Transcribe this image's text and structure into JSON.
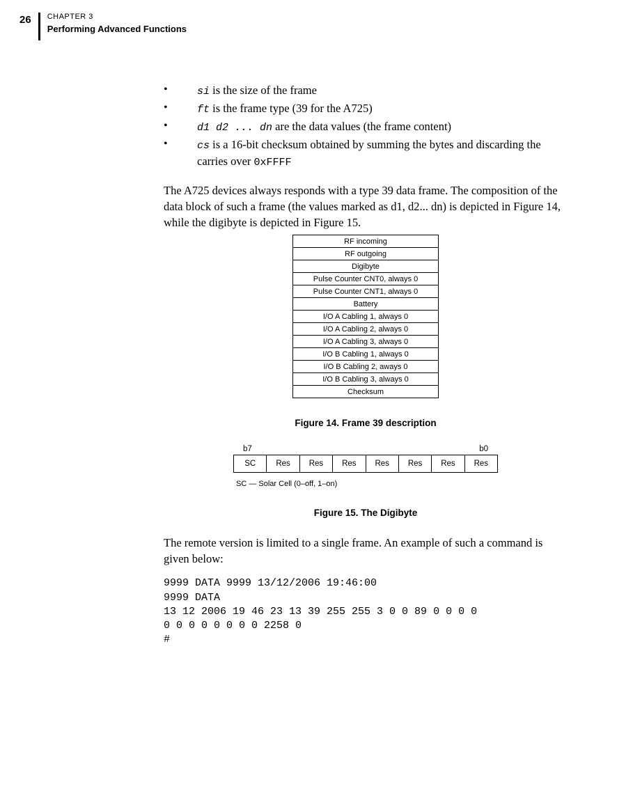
{
  "header": {
    "page_num": "26",
    "chapter_label": "CHAPTER 3",
    "chapter_title": "Performing Advanced Functions"
  },
  "bullets": [
    {
      "code": "si",
      "rest": " is the size of the frame"
    },
    {
      "code": "ft",
      "rest": " is the frame type (39 for the A725)"
    },
    {
      "code": "d1 d2 ... dn",
      "rest": " are the data values (the frame content)"
    },
    {
      "code": "cs",
      "rest": " is a 16-bit checksum obtained by summing the bytes and discarding the carries over ",
      "tail_code": "0xFFFF"
    }
  ],
  "para1": "The A725 devices always responds with a type 39 data frame. The composition of the data block of such a frame (the values marked as d1, d2... dn) is depicted in Figure 14, while the digibyte is depicted in Figure 15.",
  "frame_table": [
    "RF incoming",
    "RF outgoing",
    "Digibyte",
    "Pulse Counter CNT0, always 0",
    "Pulse Counter CNT1, always 0",
    "Battery",
    "I/O A Cabling 1, always 0",
    "I/O A Cabling 2, always 0",
    "I/O A Cabling 3, always 0",
    "I/O B Cabling 1, always 0",
    "I/O B Cabling 2, aways 0",
    "I/O B Cabling 3, always 0",
    "Checksum"
  ],
  "caption1": "Figure 14.  Frame 39 description",
  "bit_high": "b7",
  "bit_low": "b0",
  "bits": [
    "SC",
    "Res",
    "Res",
    "Res",
    "Res",
    "Res",
    "Res",
    "Res"
  ],
  "bit_note": "SC — Solar Cell (0–off, 1–on)",
  "caption2": "Figure 15.  The Digibyte",
  "para2": "The remote version is limited to a single frame. An example of such a command is given below:",
  "code": "9999 DATA 9999 13/12/2006 19:46:00\n9999 DATA\n13 12 2006 19 46 23 13 39 255 255 3 0 0 89 0 0 0 0\n0 0 0 0 0 0 0 0 2258 0\n#"
}
